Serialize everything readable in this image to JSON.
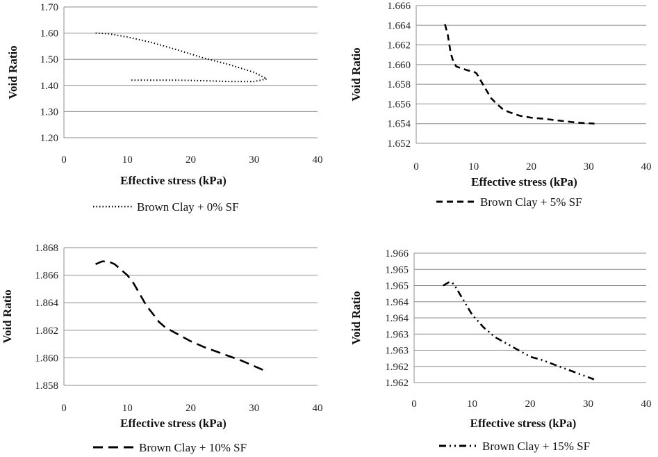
{
  "chart_data": [
    {
      "type": "line",
      "xlabel": "Effective stress (kPa)",
      "ylabel": "Void Ratio",
      "xlim": [
        0,
        40
      ],
      "ylim": [
        1.2,
        1.7
      ],
      "x_ticks": [
        "0",
        "10",
        "20",
        "30",
        "40"
      ],
      "y_ticks": [
        "1.20",
        "1.30",
        "1.40",
        "1.50",
        "1.60",
        "1.70"
      ],
      "grid": "horizontal",
      "legend_position": "bottom",
      "series": [
        {
          "name": "Brown Clay + 0% SF",
          "dash": "dotted",
          "x": [
            5,
            7,
            10,
            14,
            18,
            22,
            26,
            30,
            32,
            30,
            26,
            22,
            18,
            14,
            10.5
          ],
          "y": [
            1.6,
            1.598,
            1.585,
            1.563,
            1.535,
            1.505,
            1.48,
            1.45,
            1.425,
            1.415,
            1.415,
            1.418,
            1.42,
            1.42,
            1.42
          ]
        }
      ]
    },
    {
      "type": "line",
      "xlabel": "Effective stress (kPa)",
      "ylabel": "Void Ratio",
      "xlim": [
        0,
        40
      ],
      "ylim": [
        1.652,
        1.666
      ],
      "x_ticks": [
        "0",
        "10",
        "20",
        "30",
        "40"
      ],
      "y_ticks": [
        "1.652",
        "1.654",
        "1.656",
        "1.658",
        "1.660",
        "1.662",
        "1.664",
        "1.666"
      ],
      "grid": "horizontal",
      "legend_position": "bottom",
      "series": [
        {
          "name": "Brown Clay + 5% SF",
          "dash": "dashed",
          "x": [
            5,
            5.5,
            6,
            6.5,
            7,
            8,
            9,
            10,
            10.5,
            11,
            12,
            13,
            14,
            15,
            16,
            17,
            18,
            20,
            22,
            25,
            28,
            31
          ],
          "y": [
            1.6641,
            1.663,
            1.6612,
            1.6602,
            1.6598,
            1.6596,
            1.6594,
            1.6593,
            1.6591,
            1.6586,
            1.6576,
            1.6566,
            1.656,
            1.6555,
            1.6552,
            1.655,
            1.6548,
            1.6546,
            1.6545,
            1.6543,
            1.6541,
            1.654
          ]
        }
      ]
    },
    {
      "type": "line",
      "xlabel": "Effective stress (kPa)",
      "ylabel": "Void Ratio",
      "xlim": [
        0,
        40
      ],
      "ylim": [
        1.858,
        1.868
      ],
      "x_ticks": [
        "0",
        "10",
        "20",
        "30",
        "40"
      ],
      "y_ticks": [
        "1.858",
        "1.860",
        "1.862",
        "1.864",
        "1.866",
        "1.868"
      ],
      "grid": "horizontal",
      "legend_position": "bottom",
      "series": [
        {
          "name": "Brown Clay + 10% SF",
          "dash": "long-dash",
          "x": [
            5,
            6,
            7,
            8,
            9,
            10,
            11,
            12,
            13,
            14,
            15,
            16,
            18,
            20,
            22,
            25,
            28,
            30,
            32
          ],
          "y": [
            1.8668,
            1.867,
            1.867,
            1.8668,
            1.8664,
            1.866,
            1.8654,
            1.8646,
            1.8638,
            1.8632,
            1.8626,
            1.8622,
            1.8617,
            1.8612,
            1.8608,
            1.8603,
            1.8598,
            1.8594,
            1.859
          ]
        }
      ]
    },
    {
      "type": "line",
      "xlabel": "Effective stress (kPa)",
      "ylabel": "Void Ratio",
      "xlim": [
        0,
        40
      ],
      "ylim": [
        1.962,
        1.966
      ],
      "x_ticks": [
        "0",
        "10",
        "20",
        "30",
        "40"
      ],
      "y_ticks": [
        "1.962",
        "1.962",
        "1.963",
        "1.963",
        "1.964",
        "1.964",
        "1.965",
        "1.965",
        "1.966"
      ],
      "grid": "horizontal",
      "legend_position": "bottom",
      "series": [
        {
          "name": "Brown Clay + 15% SF",
          "dash": "dash-dot-dot",
          "x": [
            5,
            6,
            6.5,
            7,
            8,
            9,
            10,
            11,
            12,
            14,
            16,
            18,
            20,
            22,
            25,
            28,
            31
          ],
          "y": [
            1.965,
            1.9651,
            1.9651,
            1.965,
            1.9647,
            1.9644,
            1.9641,
            1.9639,
            1.9637,
            1.9634,
            1.9632,
            1.963,
            1.9628,
            1.9627,
            1.9625,
            1.9623,
            1.9621
          ]
        }
      ]
    }
  ]
}
